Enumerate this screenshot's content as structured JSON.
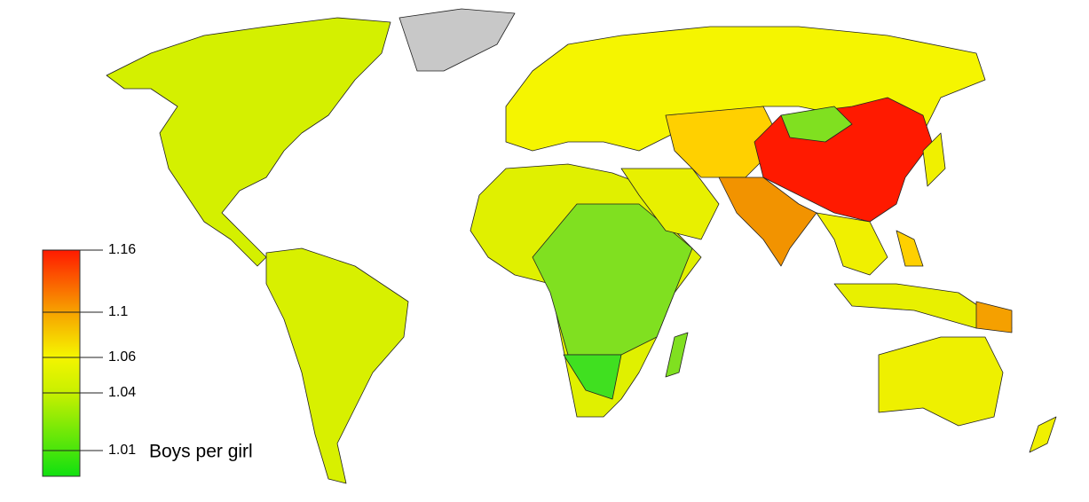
{
  "legend": {
    "title": "Boys per girl",
    "ticks": [
      1.16,
      1.1,
      1.06,
      1.04,
      1.01
    ]
  }
}
